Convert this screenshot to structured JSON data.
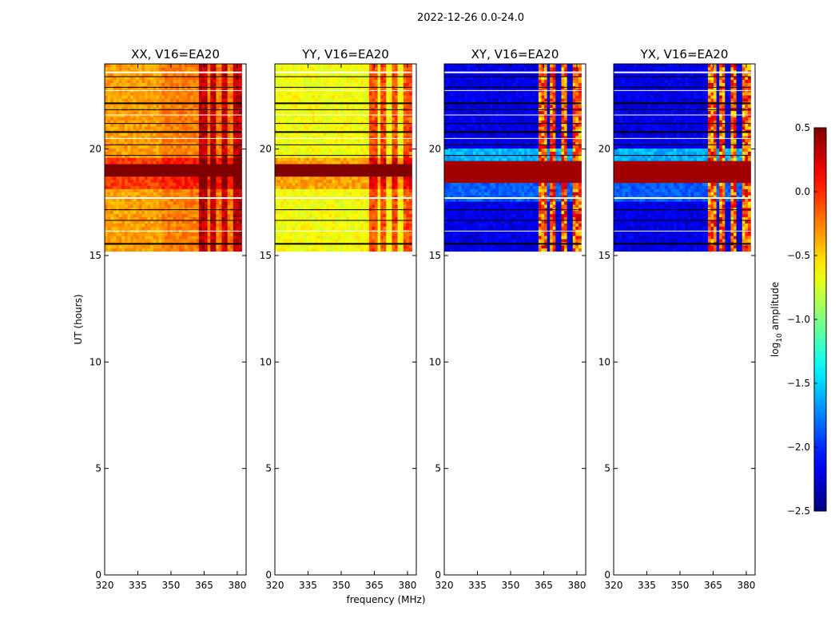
{
  "figure": {
    "suptitle": "2022-12-26 0.0-24.0",
    "ylabel": "UT (hours)",
    "xlabel": "frequency (MHz)",
    "colorbar_label_prefix": "log",
    "colorbar_label_sub": "10",
    "colorbar_label_suffix": " amplitude"
  },
  "chart_data": {
    "type": "heatmap",
    "x_ticks": [
      320,
      335,
      350,
      365,
      380
    ],
    "x_tick_labels": [
      "320",
      "335",
      "350",
      "365",
      "380"
    ],
    "xlim": [
      320,
      384
    ],
    "y_ticks": [
      0,
      5,
      10,
      15,
      20
    ],
    "y_tick_labels": [
      "0",
      "5",
      "10",
      "15",
      "20"
    ],
    "ylim": [
      0,
      24
    ],
    "data_time_range": [
      15.2,
      24.0
    ],
    "colorbar": {
      "range": [
        -2.5,
        0.5
      ],
      "ticks": [
        0.5,
        0.0,
        -0.5,
        -1.0,
        -1.5,
        -2.0,
        -2.5
      ],
      "tick_labels": [
        "0.5",
        "0.0",
        "−0.5",
        "−1.0",
        "−1.5",
        "−2.0",
        "−2.5"
      ],
      "colormap": "jet"
    },
    "panels": [
      {
        "title": "XX, V16=EA20",
        "base_level": -0.35
      },
      {
        "title": "YY, V16=EA20",
        "base_level": -0.65
      },
      {
        "title": "XY, V16=EA20",
        "base_level": -2.2
      },
      {
        "title": "YX, V16=EA20",
        "base_level": -2.2
      }
    ],
    "flagged_time_rows_hours": [
      15.55,
      16.15,
      16.65,
      17.15,
      17.7,
      19.7,
      20.2,
      20.5,
      20.8,
      21.2,
      21.6,
      21.85,
      22.15,
      22.75,
      22.9,
      23.4,
      23.6
    ],
    "bright_channels_mhz": [
      [
        362,
        366
      ],
      [
        367,
        370
      ],
      [
        372,
        375
      ],
      [
        378,
        381
      ]
    ]
  }
}
